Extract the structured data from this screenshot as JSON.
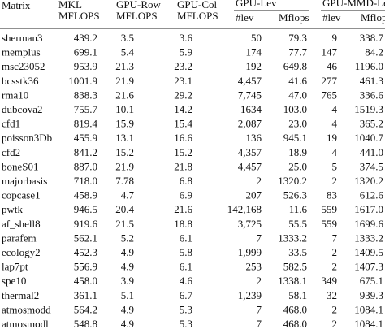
{
  "header": {
    "matrix": "Matrix",
    "mkl": [
      "MKL",
      "MFLOPS"
    ],
    "gpu_row": [
      "GPU-Row",
      "MFLOPS"
    ],
    "gpu_col": [
      "GPU-Col",
      "MFLOPS"
    ],
    "gpu_lev": {
      "title": "GPU-Lev",
      "lev": "#lev",
      "mflops": "Mflops"
    },
    "gpu_mmd_lev": {
      "title": "GPU-MMD-Lev",
      "lev": "#lev",
      "mflops": "Mflops"
    }
  },
  "table": {
    "rows": [
      [
        "sherman3",
        "439.2",
        "3.5",
        "3.6",
        "50",
        "79.3",
        "9",
        "338.7"
      ],
      [
        "memplus",
        "699.1",
        "5.4",
        "5.9",
        "174",
        "77.7",
        "147",
        "84.2"
      ],
      [
        "msc23052",
        "953.9",
        "21.3",
        "23.2",
        "192",
        "649.8",
        "46",
        "1196.0"
      ],
      [
        "bcsstk36",
        "1001.9",
        "21.9",
        "23.1",
        "4,457",
        "41.6",
        "277",
        "461.3"
      ],
      [
        "rma10",
        "838.3",
        "21.6",
        "29.2",
        "7,745",
        "47.0",
        "765",
        "336.6"
      ],
      [
        "dubcova2",
        "755.7",
        "10.1",
        "14.2",
        "1634",
        "103.0",
        "4",
        "1519.3"
      ],
      [
        "cfd1",
        "819.4",
        "15.9",
        "15.4",
        "2,087",
        "23.0",
        "4",
        "365.2"
      ],
      [
        "poisson3Db",
        "455.9",
        "13.1",
        "16.6",
        "136",
        "945.1",
        "19",
        "1040.7"
      ],
      [
        "cfd2",
        "841.2",
        "15.2",
        "15.2",
        "4,357",
        "18.9",
        "4",
        "441.0"
      ],
      [
        "boneS01",
        "887.0",
        "21.9",
        "21.8",
        "4,457",
        "25.0",
        "5",
        "374.5"
      ],
      [
        "majorbasis",
        "718.0",
        "7.78",
        "6.8",
        "2",
        "1320.2",
        "2",
        "1320.2"
      ],
      [
        "copcase1",
        "458.9",
        "4.7",
        "6.9",
        "207",
        "526.3",
        "83",
        "612.6"
      ],
      [
        "pwtk",
        "946.5",
        "20.4",
        "21.6",
        "142,168",
        "11.6",
        "559",
        "1617.0"
      ],
      [
        "af_shell8",
        "919.6",
        "21.5",
        "18.8",
        "3,725",
        "55.5",
        "559",
        "1699.6"
      ],
      [
        "parafem",
        "562.1",
        "5.2",
        "6.1",
        "7",
        "1333.2",
        "7",
        "1333.2"
      ],
      [
        "ecology2",
        "452.3",
        "4.9",
        "5.8",
        "1,999",
        "33.5",
        "2",
        "1409.5"
      ],
      [
        "lap7pt",
        "556.9",
        "4.9",
        "6.1",
        "253",
        "582.5",
        "2",
        "1407.3"
      ],
      [
        "spe10",
        "458.0",
        "3.9",
        "4.6",
        "2",
        "1338.1",
        "349",
        "675.1"
      ],
      [
        "thermal2",
        "361.1",
        "5.1",
        "6.7",
        "1,239",
        "58.1",
        "32",
        "939.3"
      ],
      [
        "atmosmodd",
        "564.2",
        "4.9",
        "5.3",
        "7",
        "468.0",
        "2",
        "1084.1"
      ],
      [
        "atmosmodl",
        "548.8",
        "4.9",
        "5.3",
        "7",
        "468.0",
        "2",
        "1084.1"
      ]
    ]
  }
}
